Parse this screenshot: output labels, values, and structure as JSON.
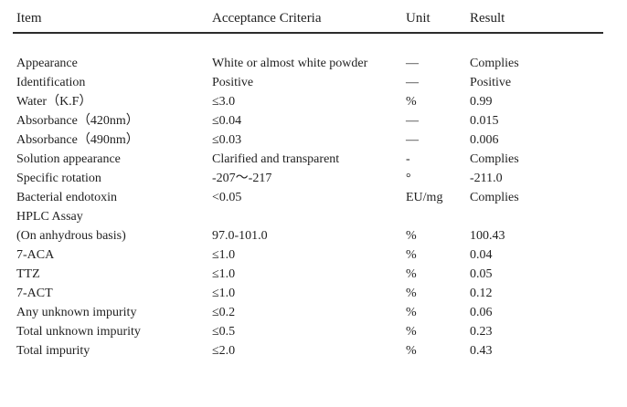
{
  "table": {
    "columns": [
      "Item",
      "Acceptance Criteria",
      "Unit",
      "Result"
    ],
    "rows": [
      {
        "item": "Appearance",
        "criteria": "White or almost white powder",
        "unit": "—",
        "result": "Complies"
      },
      {
        "item": "Identification",
        "criteria": "Positive",
        "unit": "—",
        "result": "Positive"
      },
      {
        "item": "Water（K.F）",
        "criteria": "≤3.0",
        "unit": "%",
        "result": "0.99"
      },
      {
        "item": "Absorbance（420nm）",
        "criteria": "≤0.04",
        "unit": "—",
        "result": "0.015"
      },
      {
        "item": "Absorbance（490nm）",
        "criteria": "≤0.03",
        "unit": "—",
        "result": "0.006"
      },
      {
        "item": "Solution appearance",
        "criteria": "Clarified and transparent",
        "unit": "-",
        "result": "Complies"
      },
      {
        "item": "Specific rotation",
        "criteria": "-207～-217",
        "unit": "°",
        "result": "-211.0"
      },
      {
        "item": "Bacterial endotoxin",
        "criteria": "<0.05",
        "unit": "EU/mg",
        "result": "Complies"
      },
      {
        "item": "HPLC Assay",
        "criteria": "",
        "unit": "",
        "result": ""
      },
      {
        "item": "(On anhydrous basis)",
        "criteria": "97.0-101.0",
        "unit": "%",
        "result": "100.43"
      },
      {
        "item": "7-ACA",
        "criteria": "≤1.0",
        "unit": "%",
        "result": "0.04"
      },
      {
        "item": "TTZ",
        "criteria": "≤1.0",
        "unit": "%",
        "result": "0.05"
      },
      {
        "item": "7-ACT",
        "criteria": "≤1.0",
        "unit": "%",
        "result": "0.12"
      },
      {
        "item": "Any unknown impurity",
        "criteria": "≤0.2",
        "unit": "%",
        "result": "0.06"
      },
      {
        "item": "Total unknown impurity",
        "criteria": "≤0.5",
        "unit": "%",
        "result": "0.23"
      },
      {
        "item": "Total impurity",
        "criteria": "≤2.0",
        "unit": "%",
        "result": "0.43"
      }
    ]
  },
  "colors": {
    "text": "#1f1f1f",
    "rule": "#2b2b2b",
    "background": "#ffffff"
  }
}
